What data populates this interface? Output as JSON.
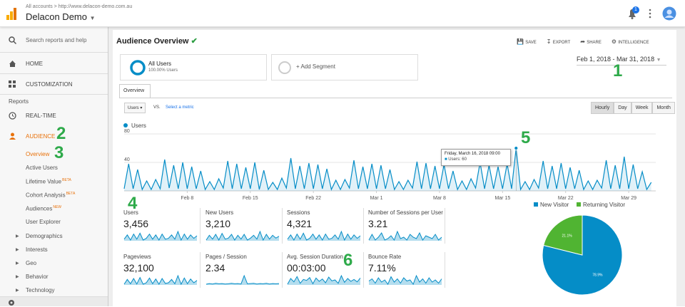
{
  "header": {
    "breadcrumb": "All accounts > http://www.delacon-demo.com.au",
    "account": "Delacon Demo",
    "notifications": "1"
  },
  "sidebar": {
    "search": "Search reports and help",
    "home": "HOME",
    "customization": "CUSTOMIZATION",
    "reports": "Reports",
    "realtime": "REAL-TIME",
    "audience": "AUDIENCE",
    "audience_items": [
      {
        "label": "Overview"
      },
      {
        "label": "Active Users"
      },
      {
        "label": "Lifetime Value",
        "badge": "BETA"
      },
      {
        "label": "Cohort Analysis",
        "badge": "BETA"
      },
      {
        "label": "Audiences",
        "badge": "NEW"
      },
      {
        "label": "User Explorer"
      }
    ],
    "groups": [
      "Demographics",
      "Interests",
      "Geo",
      "Behavior",
      "Technology"
    ]
  },
  "toolbar": {
    "title": "Audience Overview",
    "actions": [
      "SAVE",
      "EXPORT",
      "SHARE",
      "INTELLIGENCE"
    ]
  },
  "segments": {
    "active_name": "All Users",
    "active_detail": "100.00% Users",
    "add": "+ Add Segment"
  },
  "date_range": "Feb 1, 2018 - Mar 31, 2018",
  "tab": "Overview",
  "controls": {
    "metric": "Users",
    "vs": "VS.",
    "select": "Select a metric",
    "granularity": [
      "Hourly",
      "Day",
      "Week",
      "Month"
    ]
  },
  "tooltip": {
    "title": "Friday, March 16, 2018 09:00",
    "text": "Users: 60"
  },
  "chart_data": [
    {
      "type": "line",
      "series": [
        {
          "name": "Users",
          "color": "#058dc7",
          "values": [
            3,
            38,
            3,
            30,
            2,
            14,
            2,
            16,
            3,
            44,
            4,
            36,
            3,
            40,
            3,
            34,
            3,
            28,
            2,
            13,
            2,
            17,
            4,
            42,
            3,
            38,
            3,
            33,
            3,
            40,
            2,
            29,
            2,
            12,
            2,
            18,
            4,
            46,
            3,
            35,
            3,
            39,
            3,
            37,
            3,
            31,
            2,
            15,
            2,
            16,
            4,
            43,
            3,
            34,
            3,
            38,
            3,
            36,
            3,
            30,
            2,
            13,
            2,
            15,
            4,
            41,
            3,
            39,
            3,
            35,
            3,
            37,
            3,
            28,
            2,
            14,
            2,
            17,
            4,
            40,
            3,
            36,
            3,
            34,
            3,
            38,
            3,
            60,
            2,
            13,
            2,
            16,
            4,
            42,
            3,
            35,
            3,
            39,
            3,
            33,
            3,
            29,
            2,
            14,
            2,
            15,
            4,
            43,
            3,
            36,
            3,
            48,
            3,
            37,
            3,
            27,
            2,
            12
          ]
        }
      ],
      "xlim": [
        0,
        59
      ],
      "xticks": [
        {
          "value": 7,
          "label": "Feb 8"
        },
        {
          "value": 14,
          "label": "Feb 15"
        },
        {
          "value": 21,
          "label": "Feb 22"
        },
        {
          "value": 28,
          "label": "Mar 1"
        },
        {
          "value": 35,
          "label": "Mar 8"
        },
        {
          "value": 42,
          "label": "Mar 15"
        },
        {
          "value": 49,
          "label": "Mar 22"
        },
        {
          "value": 56,
          "label": "Mar 29"
        }
      ],
      "ylim": [
        0,
        80
      ],
      "yticks": [
        40,
        80
      ],
      "grid": true
    },
    {
      "type": "pie",
      "categories": [
        "New Visitor",
        "Returning Visitor"
      ],
      "values": [
        78.9,
        21.1
      ],
      "value_labels": [
        "78.9%",
        "21.1%"
      ],
      "colors": [
        "#058dc7",
        "#50b432"
      ],
      "legend": "top"
    }
  ],
  "metrics": [
    {
      "label": "Users",
      "value": "3,456",
      "spark": [
        3,
        8,
        2,
        9,
        3,
        10,
        2,
        4,
        9,
        3,
        8,
        2,
        9,
        3,
        4,
        8,
        3,
        12,
        2,
        9,
        3,
        8,
        4,
        7
      ]
    },
    {
      "label": "New Users",
      "value": "3,210",
      "spark": [
        2,
        7,
        3,
        8,
        2,
        9,
        3,
        4,
        8,
        2,
        7,
        3,
        8,
        2,
        4,
        7,
        3,
        11,
        2,
        8,
        3,
        7,
        4,
        6
      ]
    },
    {
      "label": "Sessions",
      "value": "4,321",
      "spark": [
        4,
        9,
        3,
        10,
        4,
        11,
        3,
        5,
        10,
        4,
        9,
        3,
        10,
        4,
        5,
        9,
        4,
        13,
        3,
        10,
        4,
        9,
        5,
        8
      ]
    },
    {
      "label": "Number of Sessions per User",
      "value": "3.21",
      "spark": [
        3,
        3.4,
        3,
        3.2,
        3.5,
        3,
        3.1,
        3.3,
        3,
        3.6,
        3.1,
        3.2,
        3,
        3.4,
        3.2,
        3.1,
        3.5,
        3,
        3.3,
        3.2,
        3.1,
        3.4,
        3,
        3.2
      ]
    },
    {
      "label": "Pageviews",
      "value": "32,100",
      "spark": [
        20,
        70,
        25,
        80,
        22,
        90,
        20,
        35,
        85,
        25,
        75,
        20,
        80,
        28,
        35,
        70,
        25,
        110,
        20,
        85,
        25,
        75,
        35,
        60
      ]
    },
    {
      "label": "Pages / Session",
      "value": "2.34",
      "spark": [
        2,
        2.3,
        2.1,
        2.4,
        2.2,
        2.3,
        2.1,
        2.2,
        2.4,
        2.2,
        2.3,
        2.1,
        6,
        2.2,
        2.3,
        2.4,
        2.1,
        2.3,
        2.2,
        2.4,
        2.1,
        2.3,
        2.2,
        2.3
      ]
    },
    {
      "label": "Avg. Session Duration",
      "value": "00:03:00",
      "spark": [
        100,
        220,
        150,
        260,
        120,
        200,
        180,
        240,
        110,
        230,
        160,
        210,
        130,
        250,
        170,
        190,
        120,
        280,
        140,
        220,
        160,
        200,
        150,
        230
      ]
    },
    {
      "label": "Bounce Rate",
      "value": "7.11%",
      "spark": [
        7,
        9,
        5,
        10,
        6,
        8,
        4,
        11,
        6,
        9,
        5,
        10,
        7,
        8,
        4,
        12,
        6,
        9,
        5,
        10,
        6,
        8,
        5,
        9
      ]
    }
  ],
  "annotations": [
    "1",
    "2",
    "3",
    "4",
    "5",
    "6"
  ]
}
